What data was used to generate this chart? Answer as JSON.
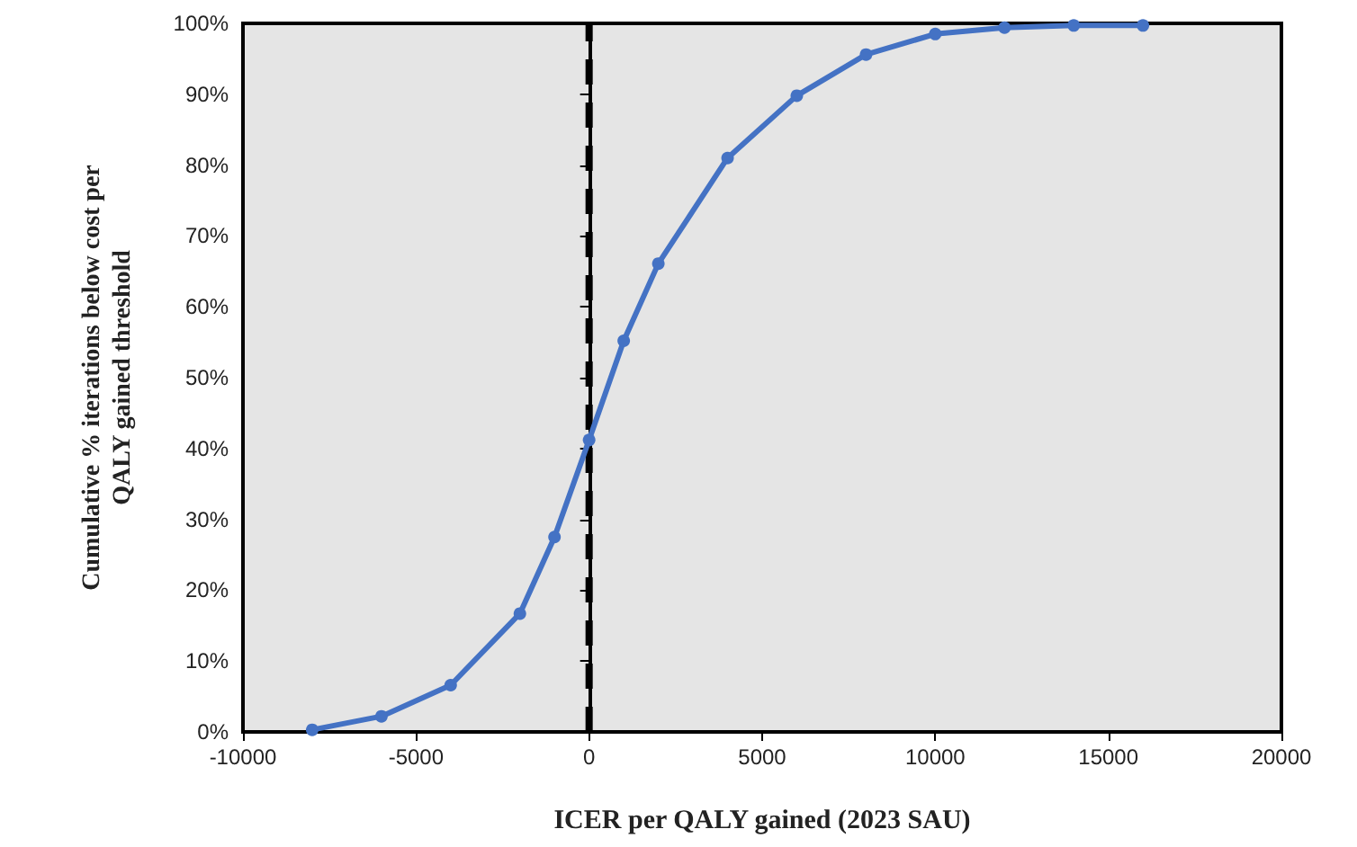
{
  "chart_data": {
    "type": "line",
    "xlabel": "ICER per QALY gained (2023 SAU)",
    "ylabel": "Cumulative % iterations below cost per QALY gained threshold",
    "x": [
      -8000,
      -6000,
      -4000,
      -2000,
      -1000,
      0,
      1000,
      2000,
      4000,
      6000,
      8000,
      10000,
      12000,
      14000,
      16000
    ],
    "series": [
      {
        "color": "#4472c4",
        "values": [
          0.3,
          2.2,
          6.6,
          16.7,
          27.5,
          41.2,
          55.2,
          66.1,
          81,
          89.8,
          95.6,
          98.5,
          99.4,
          99.7,
          99.7
        ]
      }
    ],
    "xlim": [
      -10000,
      20000
    ],
    "xticks": [
      -10000,
      -5000,
      0,
      5000,
      10000,
      15000,
      20000
    ],
    "ylim": [
      0,
      100
    ],
    "yticks": [
      {
        "value": 0,
        "label": "0%"
      },
      {
        "value": 10,
        "label": "10%"
      },
      {
        "value": 20,
        "label": "20%"
      },
      {
        "value": 30,
        "label": "30%"
      },
      {
        "value": 40,
        "label": "40%"
      },
      {
        "value": 50,
        "label": "50%"
      },
      {
        "value": 60,
        "label": "60%"
      },
      {
        "value": 70,
        "label": "70%"
      },
      {
        "value": 80,
        "label": "80%"
      },
      {
        "value": 90,
        "label": "90%"
      },
      {
        "value": 100,
        "label": "100%"
      }
    ],
    "ref_lines": [
      {
        "axis": "x",
        "value": 0,
        "color": "#000000",
        "line_style": "dashed"
      }
    ],
    "grid": false,
    "marker": "circle",
    "line_style": "solid"
  }
}
